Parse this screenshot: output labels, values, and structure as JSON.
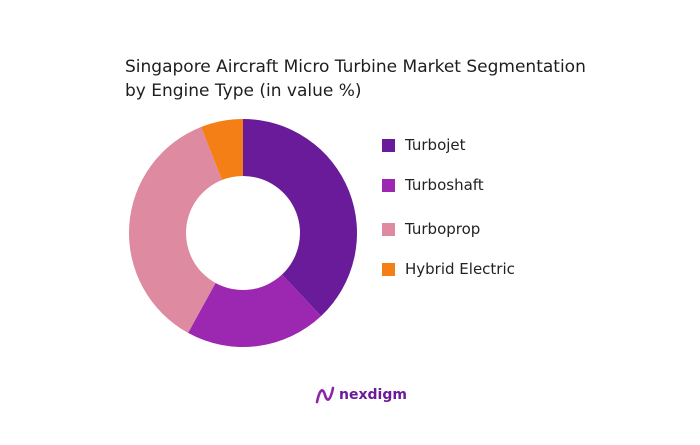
{
  "chart_data": {
    "type": "pie",
    "title_line1": "Singapore Aircraft Micro Turbine Market Segmentation",
    "title_line2": "by Engine Type (in value %)",
    "donut": true,
    "legend_position": "right",
    "slices": [
      {
        "label": "Turbojet",
        "value": 38,
        "color": "#6a1b9a"
      },
      {
        "label": "Turboshaft",
        "value": 20,
        "color": "#9c27b0"
      },
      {
        "label": "Turboprop",
        "value": 36,
        "color": "#de8aa0"
      },
      {
        "label": "Hybrid Electric",
        "value": 6,
        "color": "#f57f17"
      }
    ]
  },
  "brand": {
    "name": "nexdigm",
    "color": "#6a1b9a"
  }
}
